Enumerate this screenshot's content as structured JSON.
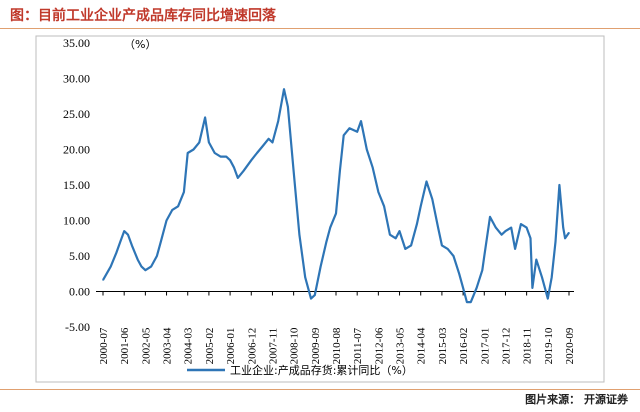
{
  "header": {
    "title": "图：目前工业企业产成品库存同比增速回落"
  },
  "footer": {
    "source": "图片来源： 开源证券"
  },
  "chart_data": {
    "type": "line",
    "title": "",
    "ylabel": "",
    "ylim": [
      -5,
      35
    ],
    "yticks": [
      "35.00",
      "30.00",
      "25.00",
      "20.00",
      "15.00",
      "10.00",
      "5.00",
      "0.00",
      "-5.00"
    ],
    "yunit": "（%）",
    "xlabels": [
      "2000-07",
      "2001-06",
      "2002-05",
      "2003-04",
      "2004-03",
      "2005-02",
      "2006-01",
      "2006-12",
      "2007-11",
      "2008-10",
      "2009-09",
      "2010-08",
      "2011-07",
      "2012-06",
      "2013-05",
      "2014-04",
      "2015-03",
      "2016-02",
      "2017-01",
      "2017-12",
      "2018-11",
      "2019-10",
      "2020-09"
    ],
    "series": [
      {
        "name": "工业企业:产成品存货:累计同比（%）",
        "color": "#2e75b6",
        "points": [
          [
            "2000-07",
            1.6
          ],
          [
            "2000-11",
            3.5
          ],
          [
            "2001-02",
            5.5
          ],
          [
            "2001-04",
            7.0
          ],
          [
            "2001-06",
            8.5
          ],
          [
            "2001-08",
            8.0
          ],
          [
            "2001-10",
            6.5
          ],
          [
            "2002-01",
            4.5
          ],
          [
            "2002-03",
            3.5
          ],
          [
            "2002-05",
            3.0
          ],
          [
            "2002-08",
            3.5
          ],
          [
            "2002-11",
            5.0
          ],
          [
            "2003-01",
            7.0
          ],
          [
            "2003-04",
            10.0
          ],
          [
            "2003-07",
            11.5
          ],
          [
            "2003-10",
            12.0
          ],
          [
            "2004-01",
            14.0
          ],
          [
            "2004-03",
            19.5
          ],
          [
            "2004-06",
            20.0
          ],
          [
            "2004-09",
            21.0
          ],
          [
            "2004-12",
            24.5
          ],
          [
            "2005-02",
            21.0
          ],
          [
            "2005-05",
            19.5
          ],
          [
            "2005-08",
            19.0
          ],
          [
            "2005-11",
            19.0
          ],
          [
            "2006-01",
            18.5
          ],
          [
            "2006-03",
            17.5
          ],
          [
            "2006-05",
            16.0
          ],
          [
            "2006-08",
            17.0
          ],
          [
            "2006-12",
            18.5
          ],
          [
            "2007-03",
            19.5
          ],
          [
            "2007-06",
            20.5
          ],
          [
            "2007-09",
            21.5
          ],
          [
            "2007-11",
            21.0
          ],
          [
            "2008-02",
            24.0
          ],
          [
            "2008-05",
            28.5
          ],
          [
            "2008-07",
            26.0
          ],
          [
            "2008-10",
            17.0
          ],
          [
            "2009-01",
            8.0
          ],
          [
            "2009-04",
            2.0
          ],
          [
            "2009-07",
            -1.0
          ],
          [
            "2009-09",
            -0.5
          ],
          [
            "2009-12",
            3.5
          ],
          [
            "2010-03",
            7.0
          ],
          [
            "2010-05",
            9.0
          ],
          [
            "2010-08",
            11.0
          ],
          [
            "2010-10",
            17.0
          ],
          [
            "2010-12",
            22.0
          ],
          [
            "2011-03",
            23.0
          ],
          [
            "2011-07",
            22.5
          ],
          [
            "2011-09",
            24.0
          ],
          [
            "2011-12",
            20.0
          ],
          [
            "2012-03",
            17.5
          ],
          [
            "2012-06",
            14.0
          ],
          [
            "2012-09",
            12.0
          ],
          [
            "2012-12",
            8.0
          ],
          [
            "2013-03",
            7.5
          ],
          [
            "2013-05",
            8.5
          ],
          [
            "2013-08",
            6.0
          ],
          [
            "2013-11",
            6.5
          ],
          [
            "2014-02",
            9.5
          ],
          [
            "2014-04",
            12.0
          ],
          [
            "2014-07",
            15.5
          ],
          [
            "2014-10",
            13.0
          ],
          [
            "2015-01",
            9.0
          ],
          [
            "2015-03",
            6.5
          ],
          [
            "2015-06",
            6.0
          ],
          [
            "2015-09",
            5.0
          ],
          [
            "2015-12",
            2.5
          ],
          [
            "2016-02",
            0.5
          ],
          [
            "2016-04",
            -1.5
          ],
          [
            "2016-06",
            -1.5
          ],
          [
            "2016-09",
            0.5
          ],
          [
            "2016-12",
            3.0
          ],
          [
            "2017-01",
            5.0
          ],
          [
            "2017-04",
            10.5
          ],
          [
            "2017-07",
            9.0
          ],
          [
            "2017-10",
            8.0
          ],
          [
            "2017-12",
            8.5
          ],
          [
            "2018-03",
            9.0
          ],
          [
            "2018-05",
            6.0
          ],
          [
            "2018-08",
            9.5
          ],
          [
            "2018-11",
            9.0
          ],
          [
            "2019-01",
            7.5
          ],
          [
            "2019-02",
            0.5
          ],
          [
            "2019-04",
            4.5
          ],
          [
            "2019-07",
            2.0
          ],
          [
            "2019-10",
            -1.0
          ],
          [
            "2019-12",
            2.0
          ],
          [
            "2020-02",
            7.0
          ],
          [
            "2020-04",
            15.0
          ],
          [
            "2020-06",
            9.0
          ],
          [
            "2020-07",
            7.5
          ],
          [
            "2020-09",
            8.3
          ]
        ]
      }
    ],
    "grid": false,
    "legend": "bottom"
  }
}
